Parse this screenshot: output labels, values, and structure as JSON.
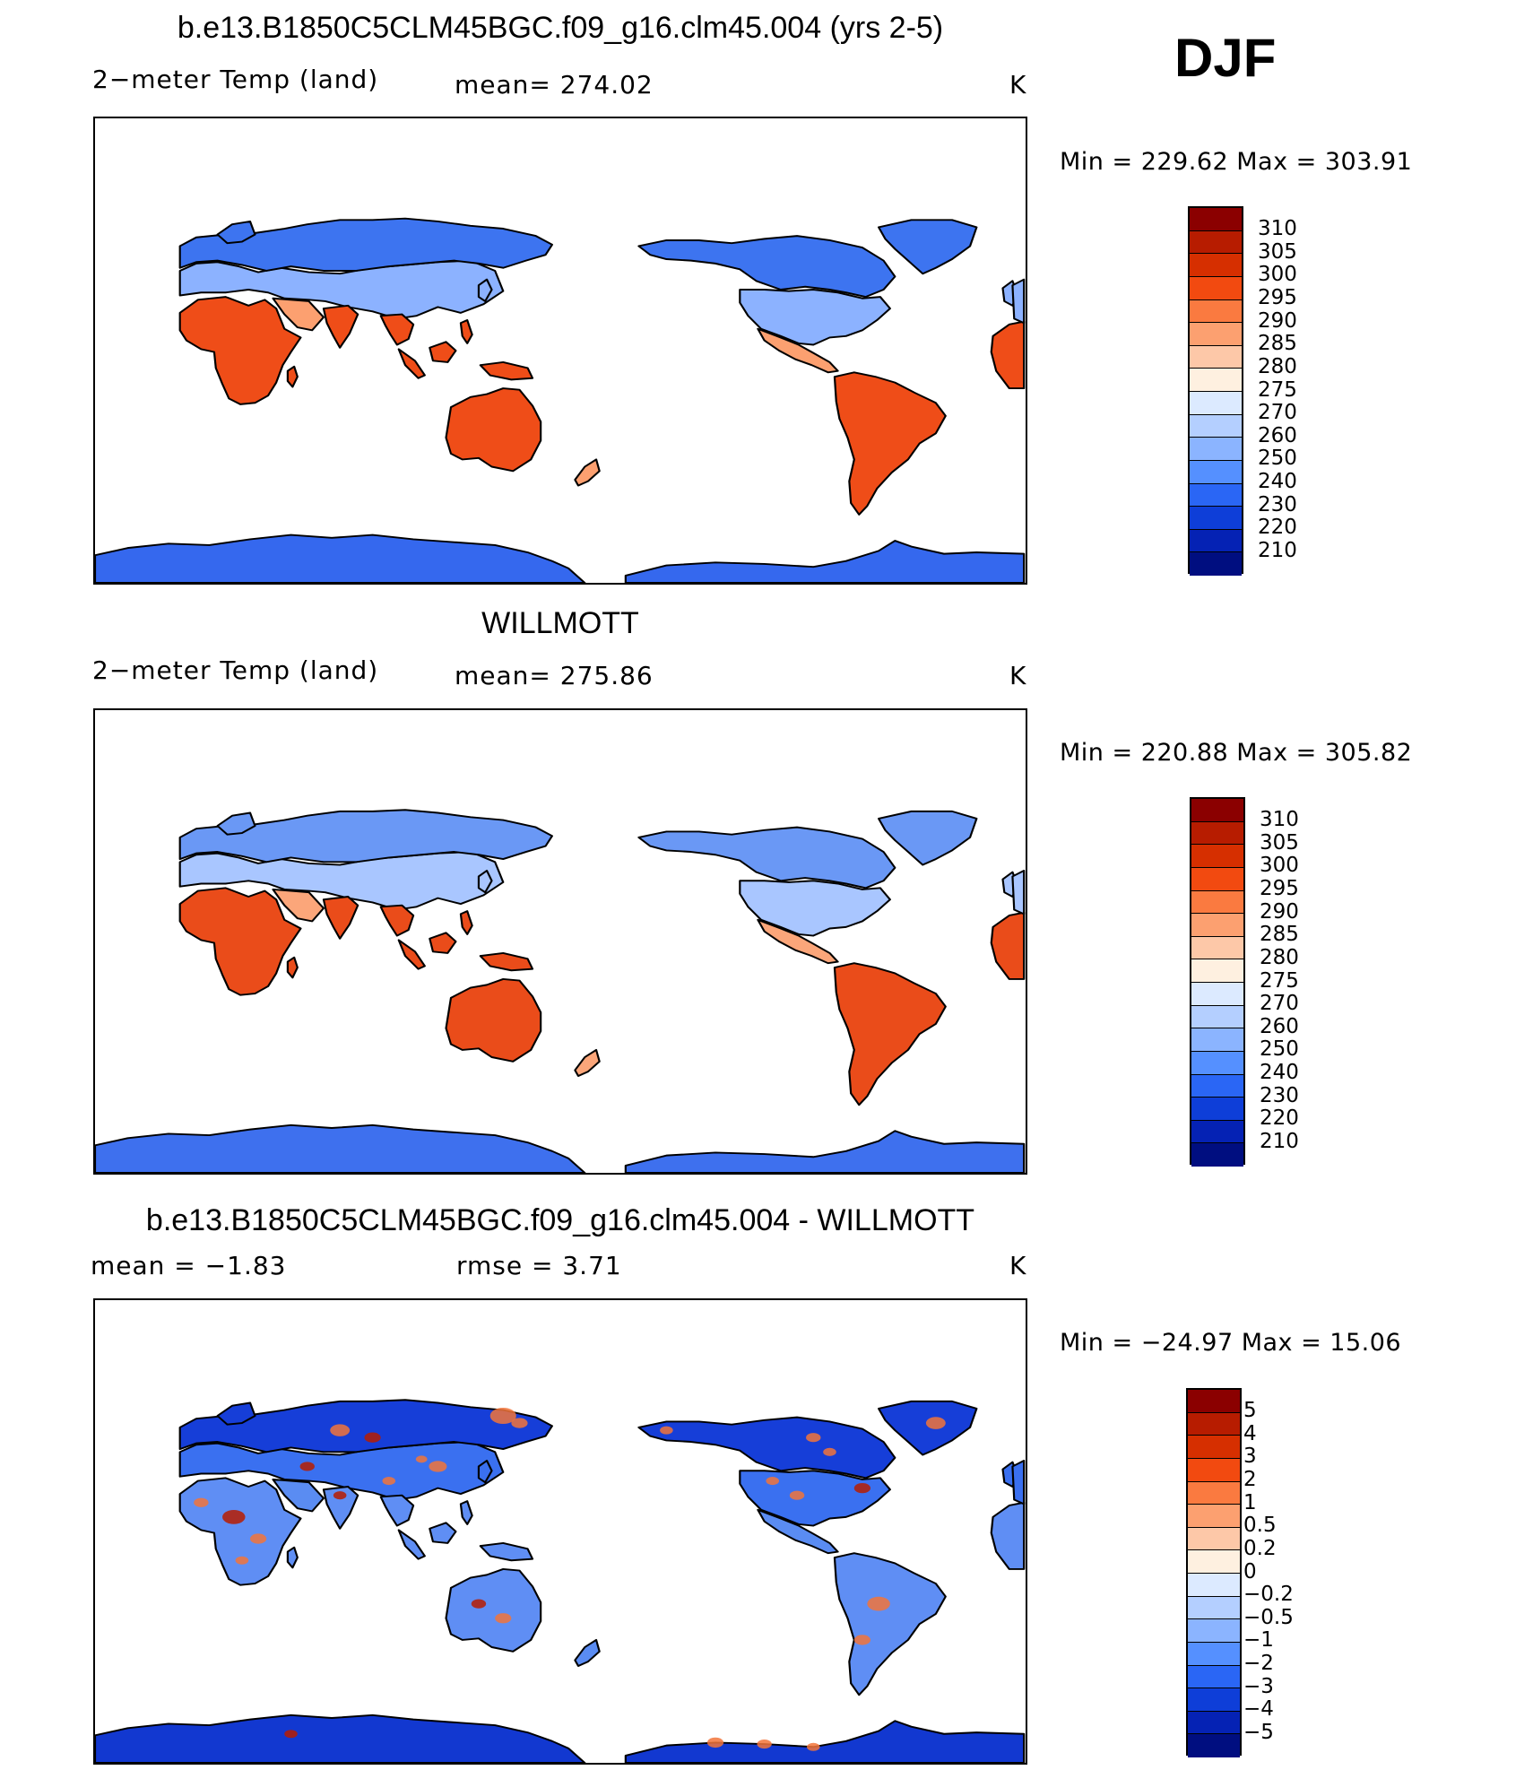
{
  "season": "DJF",
  "panels": [
    {
      "title": "b.e13.B1850C5CLM45BGC.f09_g16.clm45.004 (yrs 2-5)",
      "variable": "2−meter Temp (land)",
      "stat1": "mean= 274.02",
      "stat2": "",
      "units": "K",
      "minmax": "Min  =  229.62  Max  =  303.91",
      "legend": {
        "labels": [
          "310",
          "305",
          "300",
          "295",
          "290",
          "285",
          "280",
          "275",
          "270",
          "260",
          "250",
          "240",
          "230",
          "220",
          "210"
        ],
        "colors": [
          "#8b0000",
          "#b71c00",
          "#d62f00",
          "#f24a10",
          "#fa7a40",
          "#fca070",
          "#fdc8a8",
          "#fef0e0",
          "#dceaff",
          "#b4cfff",
          "#8bb4ff",
          "#5590ff",
          "#2a66f5",
          "#0e3ed8",
          "#0522b4",
          "#000e80"
        ]
      }
    },
    {
      "title": "WILLMOTT",
      "variable": "2−meter Temp (land)",
      "stat1": "mean= 275.86",
      "stat2": "",
      "units": "K",
      "minmax": "Min  =  220.88  Max  =  305.82",
      "legend": {
        "labels": [
          "310",
          "305",
          "300",
          "295",
          "290",
          "285",
          "280",
          "275",
          "270",
          "260",
          "250",
          "240",
          "230",
          "220",
          "210"
        ],
        "colors": [
          "#8b0000",
          "#b71c00",
          "#d62f00",
          "#f24a10",
          "#fa7a40",
          "#fca070",
          "#fdc8a8",
          "#fef0e0",
          "#dceaff",
          "#b4cfff",
          "#8bb4ff",
          "#5590ff",
          "#2a66f5",
          "#0e3ed8",
          "#0522b4",
          "#000e80"
        ]
      }
    },
    {
      "title": "b.e13.B1850C5CLM45BGC.f09_g16.clm45.004 - WILLMOTT",
      "variable": "",
      "stat1": "mean  =    −1.83",
      "stat2": "rmse  =     3.71",
      "units": "K",
      "minmax": "Min  =  −24.97  Max  =    15.06",
      "legend": {
        "labels": [
          "5",
          "4",
          "3",
          "2",
          "1",
          "0.5",
          "0.2",
          "0",
          "−0.2",
          "−0.5",
          "−1",
          "−2",
          "−3",
          "−4",
          "−5"
        ],
        "colors": [
          "#8b0000",
          "#b71c00",
          "#d62f00",
          "#f24a10",
          "#fa7a40",
          "#fca070",
          "#fdc8a8",
          "#fef0e0",
          "#dceaff",
          "#b4cfff",
          "#8bb4ff",
          "#5590ff",
          "#2a66f5",
          "#0e3ed8",
          "#0522b4",
          "#000e80"
        ]
      }
    }
  ],
  "land_fill": {
    "model": {
      "north": "#3d74f0",
      "mid": "#8cb2ff",
      "subtrop": "#fca070",
      "trop": "#ef4d18",
      "antarctic": "#3568ee"
    },
    "obs": {
      "north": "#6a98f5",
      "mid": "#a9c6ff",
      "subtrop": "#fba67a",
      "trop": "#ea4c1a",
      "antarctic": "#3e70ee"
    },
    "diff": {
      "north": "#163ed8",
      "mid": "#3a70f0",
      "subtrop": "#5a8cf2",
      "trop": "#5f8ef4",
      "antarctic": "#1238d0",
      "accent": "#f2743a"
    }
  }
}
